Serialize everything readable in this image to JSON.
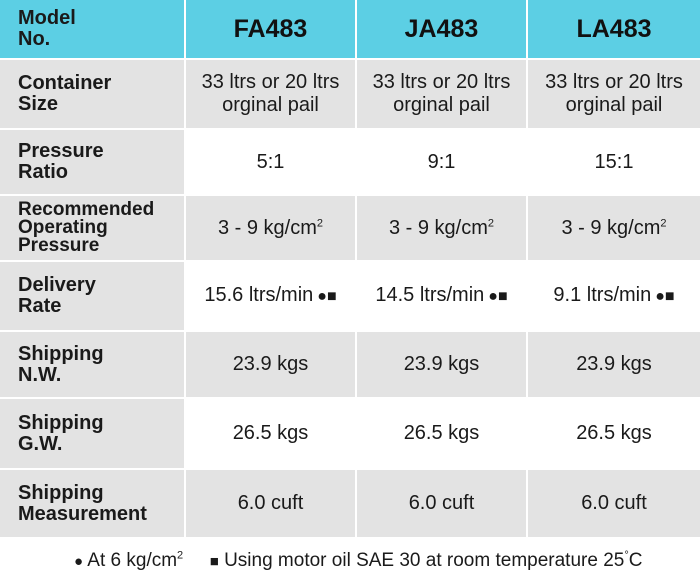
{
  "header": {
    "label_line1": "Model",
    "label_line2": "No.",
    "models": [
      "FA483",
      "JA483",
      "LA483"
    ]
  },
  "rows": [
    {
      "label_lines": [
        "Container",
        "Size"
      ],
      "cells": [
        [
          "33 ltrs or 20 ltrs",
          "orginal pail"
        ],
        [
          "33 ltrs or 20 ltrs",
          "orginal pail"
        ],
        [
          "33 ltrs or 20 ltrs",
          "orginal pail"
        ]
      ]
    },
    {
      "label_lines": [
        "Pressure",
        "Ratio"
      ],
      "cells": [
        "5:1",
        "9:1",
        "15:1"
      ]
    },
    {
      "label_lines": [
        "Recommended",
        "Operating",
        "Pressure"
      ],
      "cells": [
        {
          "text": "3 - 9 kg/cm",
          "sup": "2"
        },
        {
          "text": "3 - 9 kg/cm",
          "sup": "2"
        },
        {
          "text": "3 - 9 kg/cm",
          "sup": "2"
        }
      ]
    },
    {
      "label_lines": [
        "Delivery",
        "Rate"
      ],
      "cells": [
        {
          "text": "15.6 ltrs/min",
          "symbols": "●■"
        },
        {
          "text": "14.5 ltrs/min",
          "symbols": "●■"
        },
        {
          "text": "9.1 ltrs/min",
          "symbols": "●■"
        }
      ]
    },
    {
      "label_lines": [
        "Shipping",
        "N.W."
      ],
      "cells": [
        "23.9 kgs",
        "23.9 kgs",
        "23.9 kgs"
      ]
    },
    {
      "label_lines": [
        "Shipping",
        "G.W."
      ],
      "cells": [
        "26.5 kgs",
        "26.5 kgs",
        "26.5 kgs"
      ]
    },
    {
      "label_lines": [
        "Shipping",
        "Measurement"
      ],
      "cells": [
        "6.0 cuft",
        "6.0 cuft",
        "6.0 cuft"
      ]
    }
  ],
  "footnotes": {
    "circle_symbol": "●",
    "circle_text": "At 6 kg/cm",
    "circle_sup": "2",
    "square_symbol": "■",
    "square_text": "Using motor oil SAE 30 at room temperature 25",
    "degree_symbol": "°",
    "unit": "C"
  },
  "colors": {
    "header_bg": "#5ccfe4",
    "shade_bg": "#e3e3e3",
    "plain_bg": "#ffffff",
    "text": "#1a1a1a"
  }
}
